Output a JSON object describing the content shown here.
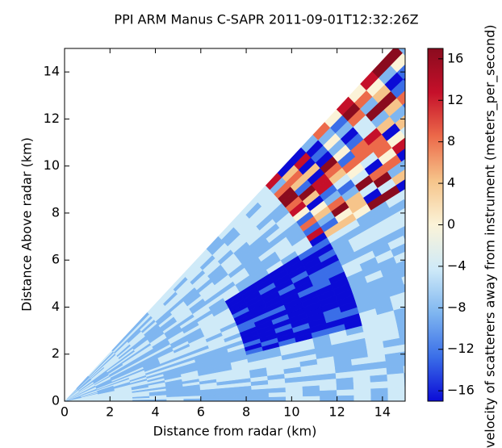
{
  "chart_data": {
    "type": "radar-ppi",
    "title": "PPI ARM Manus C-SAPR 2011-09-01T12:32:26Z",
    "xlabel": "Distance from radar (km)",
    "ylabel": "Distance Above radar  (km)",
    "xlim": [
      0,
      15
    ],
    "xticks": [
      0,
      2,
      4,
      6,
      8,
      10,
      12,
      14
    ],
    "ylim": [
      0,
      15
    ],
    "yticks": [
      0,
      2,
      4,
      6,
      8,
      10,
      12,
      14
    ],
    "colorbar": {
      "label": "velocity of scatterers away from instrument (meters_per_second)",
      "lim": [
        -17,
        17
      ],
      "ticks": [
        {
          "value": -16,
          "label": "−16"
        },
        {
          "value": -12,
          "label": "−12"
        },
        {
          "value": -8,
          "label": "−8"
        },
        {
          "value": -4,
          "label": "−4"
        },
        0,
        4,
        8,
        12,
        16
      ],
      "colormap": [
        "#0b0bd6",
        "#3a6ee8",
        "#7fb6f0",
        "#cfeaf8",
        "#fbf3d8",
        "#f6c48a",
        "#ec6a4a",
        "#c5102a",
        "#8a0b1e"
      ]
    }
  }
}
